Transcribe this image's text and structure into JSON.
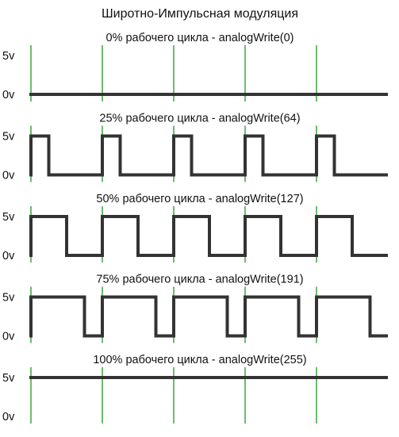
{
  "diagram": {
    "title": "Широтно-Импульсная модуляция",
    "level_labels": {
      "high": "5v",
      "low": "0v"
    },
    "colors": {
      "wave": "#333333",
      "period_marker": "#3aa53a",
      "text": "#111111"
    },
    "periods_shown": 5,
    "panels": [
      {
        "caption": "0% рабочего цикла - analogWrite(0)",
        "duty_cycle": 0.0
      },
      {
        "caption": "25% рабочего цикла - analogWrite(64)",
        "duty_cycle": 0.25
      },
      {
        "caption": "50% рабочего цикла - analogWrite(127)",
        "duty_cycle": 0.5
      },
      {
        "caption": "75% рабочего цикла - analogWrite(191)",
        "duty_cycle": 0.75
      },
      {
        "caption": "100% рабочего цикла - analogWrite(255)",
        "duty_cycle": 1.0
      }
    ]
  }
}
